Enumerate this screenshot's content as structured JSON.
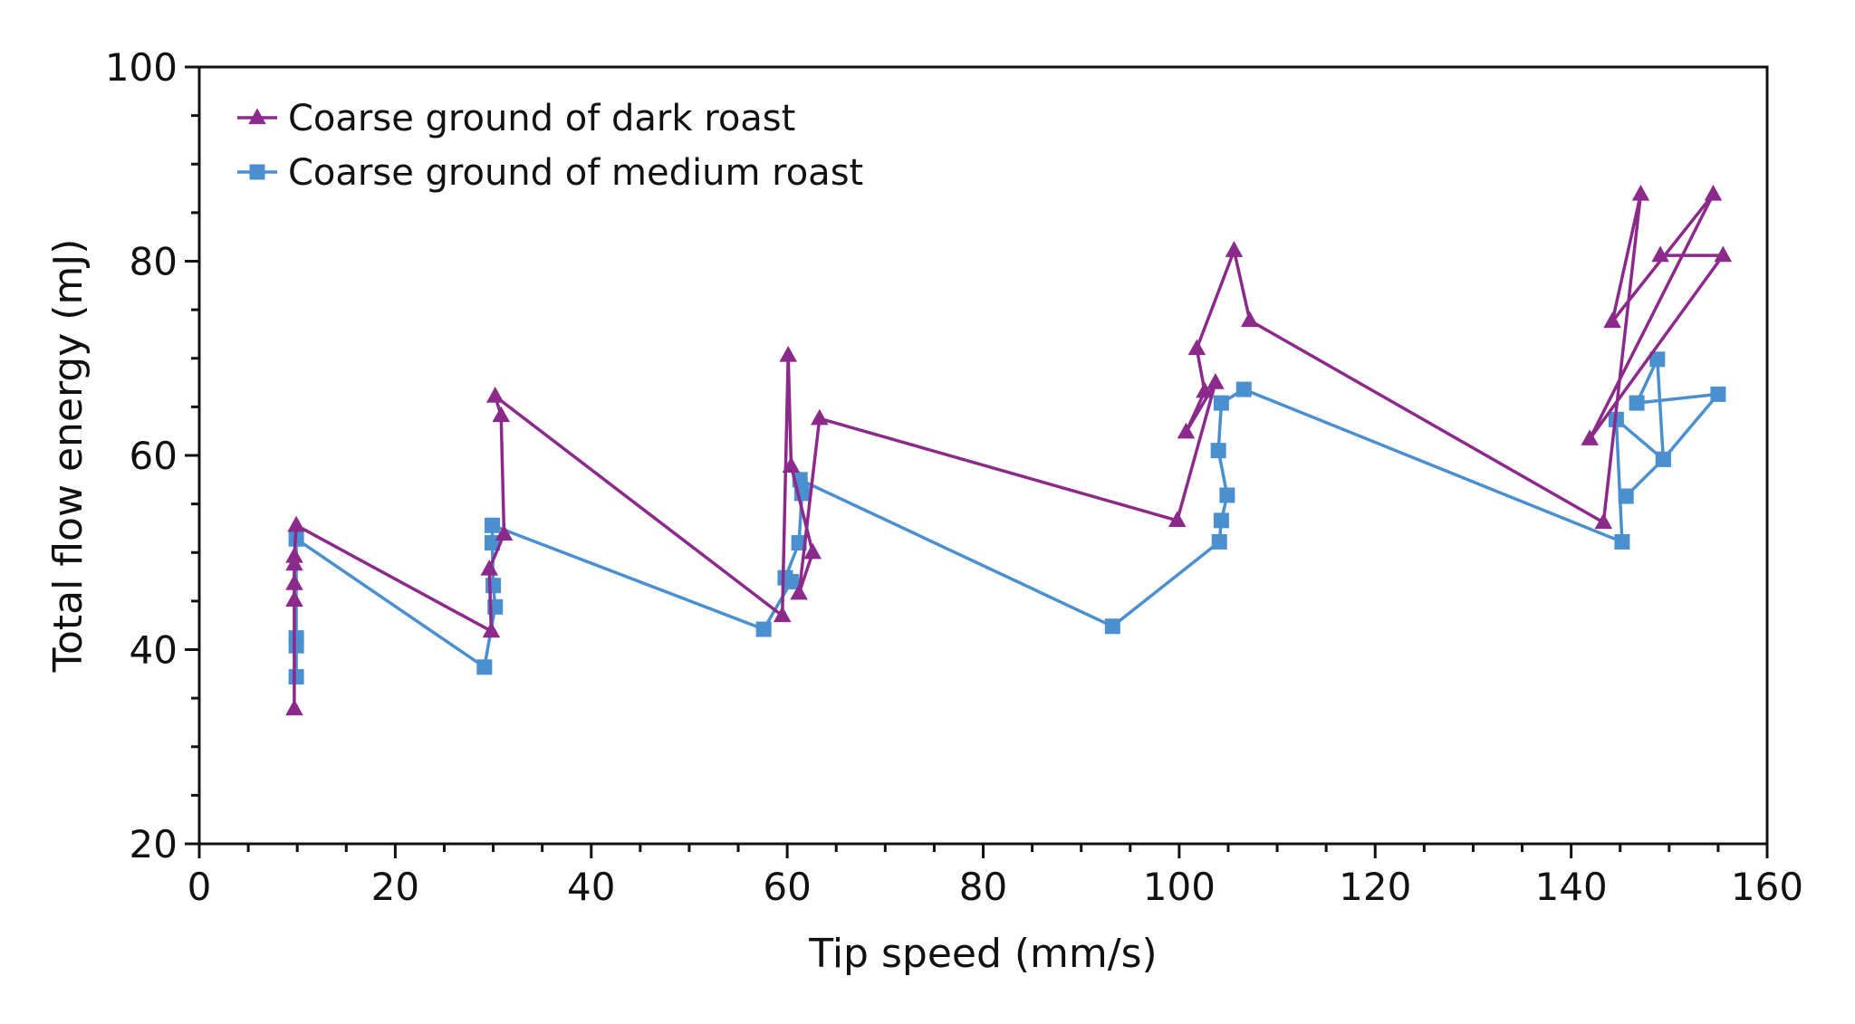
{
  "chart_data": {
    "type": "line",
    "title": "",
    "xlabel": "Tip speed (mm/s)",
    "ylabel": "Total flow energy (mJ)",
    "xlim": [
      0,
      160
    ],
    "ylim": [
      20,
      100
    ],
    "xticks": [
      0,
      20,
      40,
      60,
      80,
      100,
      120,
      140,
      160
    ],
    "yticks": [
      20,
      40,
      60,
      80,
      100
    ],
    "xtick_labels": [
      "0",
      "20",
      "40",
      "60",
      "80",
      "100",
      "120",
      "140",
      "160"
    ],
    "ytick_labels": [
      "20",
      "40",
      "60",
      "80",
      "100"
    ],
    "minor_tick_step": 5,
    "grid": false,
    "legend_position": "top-left",
    "series": [
      {
        "name": "Coarse ground of dark roast",
        "marker": "triangle",
        "color": "#8B2A8B",
        "points": [
          [
            9.7,
            33.9
          ],
          [
            9.7,
            45.1
          ],
          [
            9.7,
            46.8
          ],
          [
            9.7,
            48.8
          ],
          [
            9.7,
            49.6
          ],
          [
            9.9,
            52.8
          ],
          [
            29.8,
            41.9
          ],
          [
            29.6,
            48.3
          ],
          [
            31.1,
            51.9
          ],
          [
            30.8,
            64.1
          ],
          [
            30.2,
            66.1
          ],
          [
            59.5,
            43.5
          ],
          [
            60.1,
            70.3
          ],
          [
            60.4,
            58.9
          ],
          [
            62.6,
            50.0
          ],
          [
            61.2,
            45.8
          ],
          [
            63.3,
            63.8
          ],
          [
            99.8,
            53.3
          ],
          [
            103.7,
            67.5
          ],
          [
            100.7,
            62.4
          ],
          [
            102.6,
            66.6
          ],
          [
            101.8,
            71.0
          ],
          [
            105.6,
            81.1
          ],
          [
            107.2,
            73.9
          ],
          [
            143.3,
            53.1
          ],
          [
            147.1,
            86.9
          ],
          [
            144.2,
            73.8
          ],
          [
            154.5,
            86.9
          ],
          [
            141.9,
            61.7
          ],
          [
            155.5,
            80.6
          ],
          [
            149.1,
            80.6
          ]
        ]
      },
      {
        "name": "Coarse ground of medium roast",
        "marker": "square",
        "color": "#4A90D0",
        "points": [
          [
            9.9,
            37.2
          ],
          [
            9.9,
            40.4
          ],
          [
            9.9,
            41.2
          ],
          [
            9.9,
            51.4
          ],
          [
            29.1,
            38.2
          ],
          [
            30.2,
            44.4
          ],
          [
            30.0,
            46.6
          ],
          [
            29.9,
            51.0
          ],
          [
            29.9,
            52.8
          ],
          [
            57.6,
            42.1
          ],
          [
            60.4,
            47.0
          ],
          [
            59.8,
            47.4
          ],
          [
            61.2,
            51.0
          ],
          [
            61.5,
            56.1
          ],
          [
            61.3,
            57.5
          ],
          [
            93.2,
            42.4
          ],
          [
            104.1,
            51.1
          ],
          [
            104.3,
            53.3
          ],
          [
            104.9,
            55.9
          ],
          [
            104.0,
            60.5
          ],
          [
            104.3,
            65.4
          ],
          [
            106.6,
            66.8
          ],
          [
            145.2,
            51.1
          ],
          [
            144.6,
            63.7
          ],
          [
            149.4,
            59.6
          ],
          [
            148.8,
            69.9
          ],
          [
            146.7,
            65.4
          ],
          [
            155.0,
            66.3
          ],
          [
            149.4,
            59.6
          ],
          [
            145.6,
            55.8
          ]
        ]
      }
    ]
  }
}
